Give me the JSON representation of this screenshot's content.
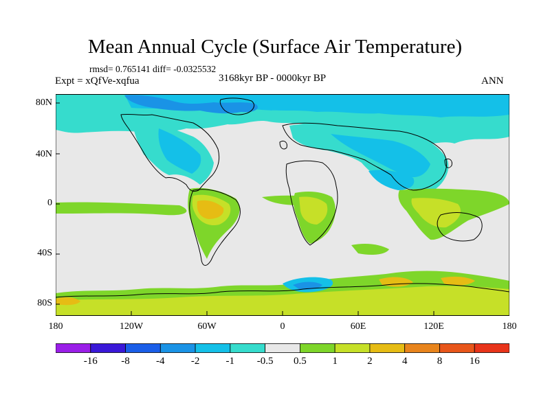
{
  "title": "Mean Annual Cycle (Surface Air Temperature)",
  "stats": "rmsd= 0.765141  diff= -0.0325532",
  "experiment": "Expt = xQfVe-xqfua",
  "period": "3168kyr BP - 0000kyr BP",
  "season": "ANN",
  "axes": {
    "lat_labels": [
      "80N",
      "40N",
      "0",
      "40S",
      "80S"
    ],
    "lon_labels": [
      "180",
      "120W",
      "60W",
      "0",
      "60E",
      "120E",
      "180"
    ]
  },
  "colorbar": {
    "labels": [
      "-16",
      "-8",
      "-4",
      "-2",
      "-1",
      "-0.5",
      "0.5",
      "1",
      "2",
      "4",
      "8",
      "16"
    ],
    "colors": [
      "#9a1fe8",
      "#3a18d8",
      "#1a5ee8",
      "#1a93e6",
      "#14c0e8",
      "#36dccd",
      "#e8e8e8",
      "#7ed62a",
      "#c6e028",
      "#e6bc14",
      "#e8841c",
      "#e8561a",
      "#e8341a"
    ]
  },
  "palette": {
    "neutral": "#e8e8e8",
    "cool1": "#36dccd",
    "cool2": "#14c0e8",
    "cool3": "#1a93e6",
    "cool4": "#1a5ee8",
    "warm1": "#7ed62a",
    "warm2": "#c6e028",
    "warm3": "#e6bc14"
  }
}
